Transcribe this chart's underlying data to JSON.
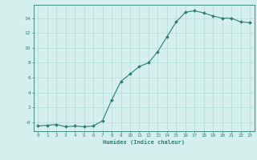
{
  "x": [
    0,
    1,
    2,
    3,
    4,
    5,
    6,
    7,
    8,
    9,
    10,
    11,
    12,
    13,
    14,
    15,
    16,
    17,
    18,
    19,
    20,
    21,
    22,
    23
  ],
  "y": [
    -0.5,
    -0.4,
    -0.3,
    -0.6,
    -0.5,
    -0.6,
    -0.5,
    0.2,
    3.0,
    5.5,
    6.5,
    7.5,
    8.0,
    9.5,
    11.5,
    13.5,
    14.8,
    15.0,
    14.7,
    14.3,
    14.0,
    14.0,
    13.5,
    13.4
  ],
  "line_color": "#2d7d6e",
  "marker_color": "#2d7d6e",
  "bg_color": "#d5f0ec",
  "grid_color": "#b8e0da",
  "axis_color": "#2d7d6e",
  "tick_color": "#2d7d6e",
  "xlabel": "Humidex (Indice chaleur)",
  "ylim": [
    -1.2,
    15.8
  ],
  "yticks": [
    0,
    2,
    4,
    6,
    8,
    10,
    12,
    14
  ],
  "ytick_labels": [
    "-0",
    "2",
    "4",
    "6",
    "8",
    "10",
    "12",
    "14"
  ],
  "font_color": "#2d7d6e"
}
